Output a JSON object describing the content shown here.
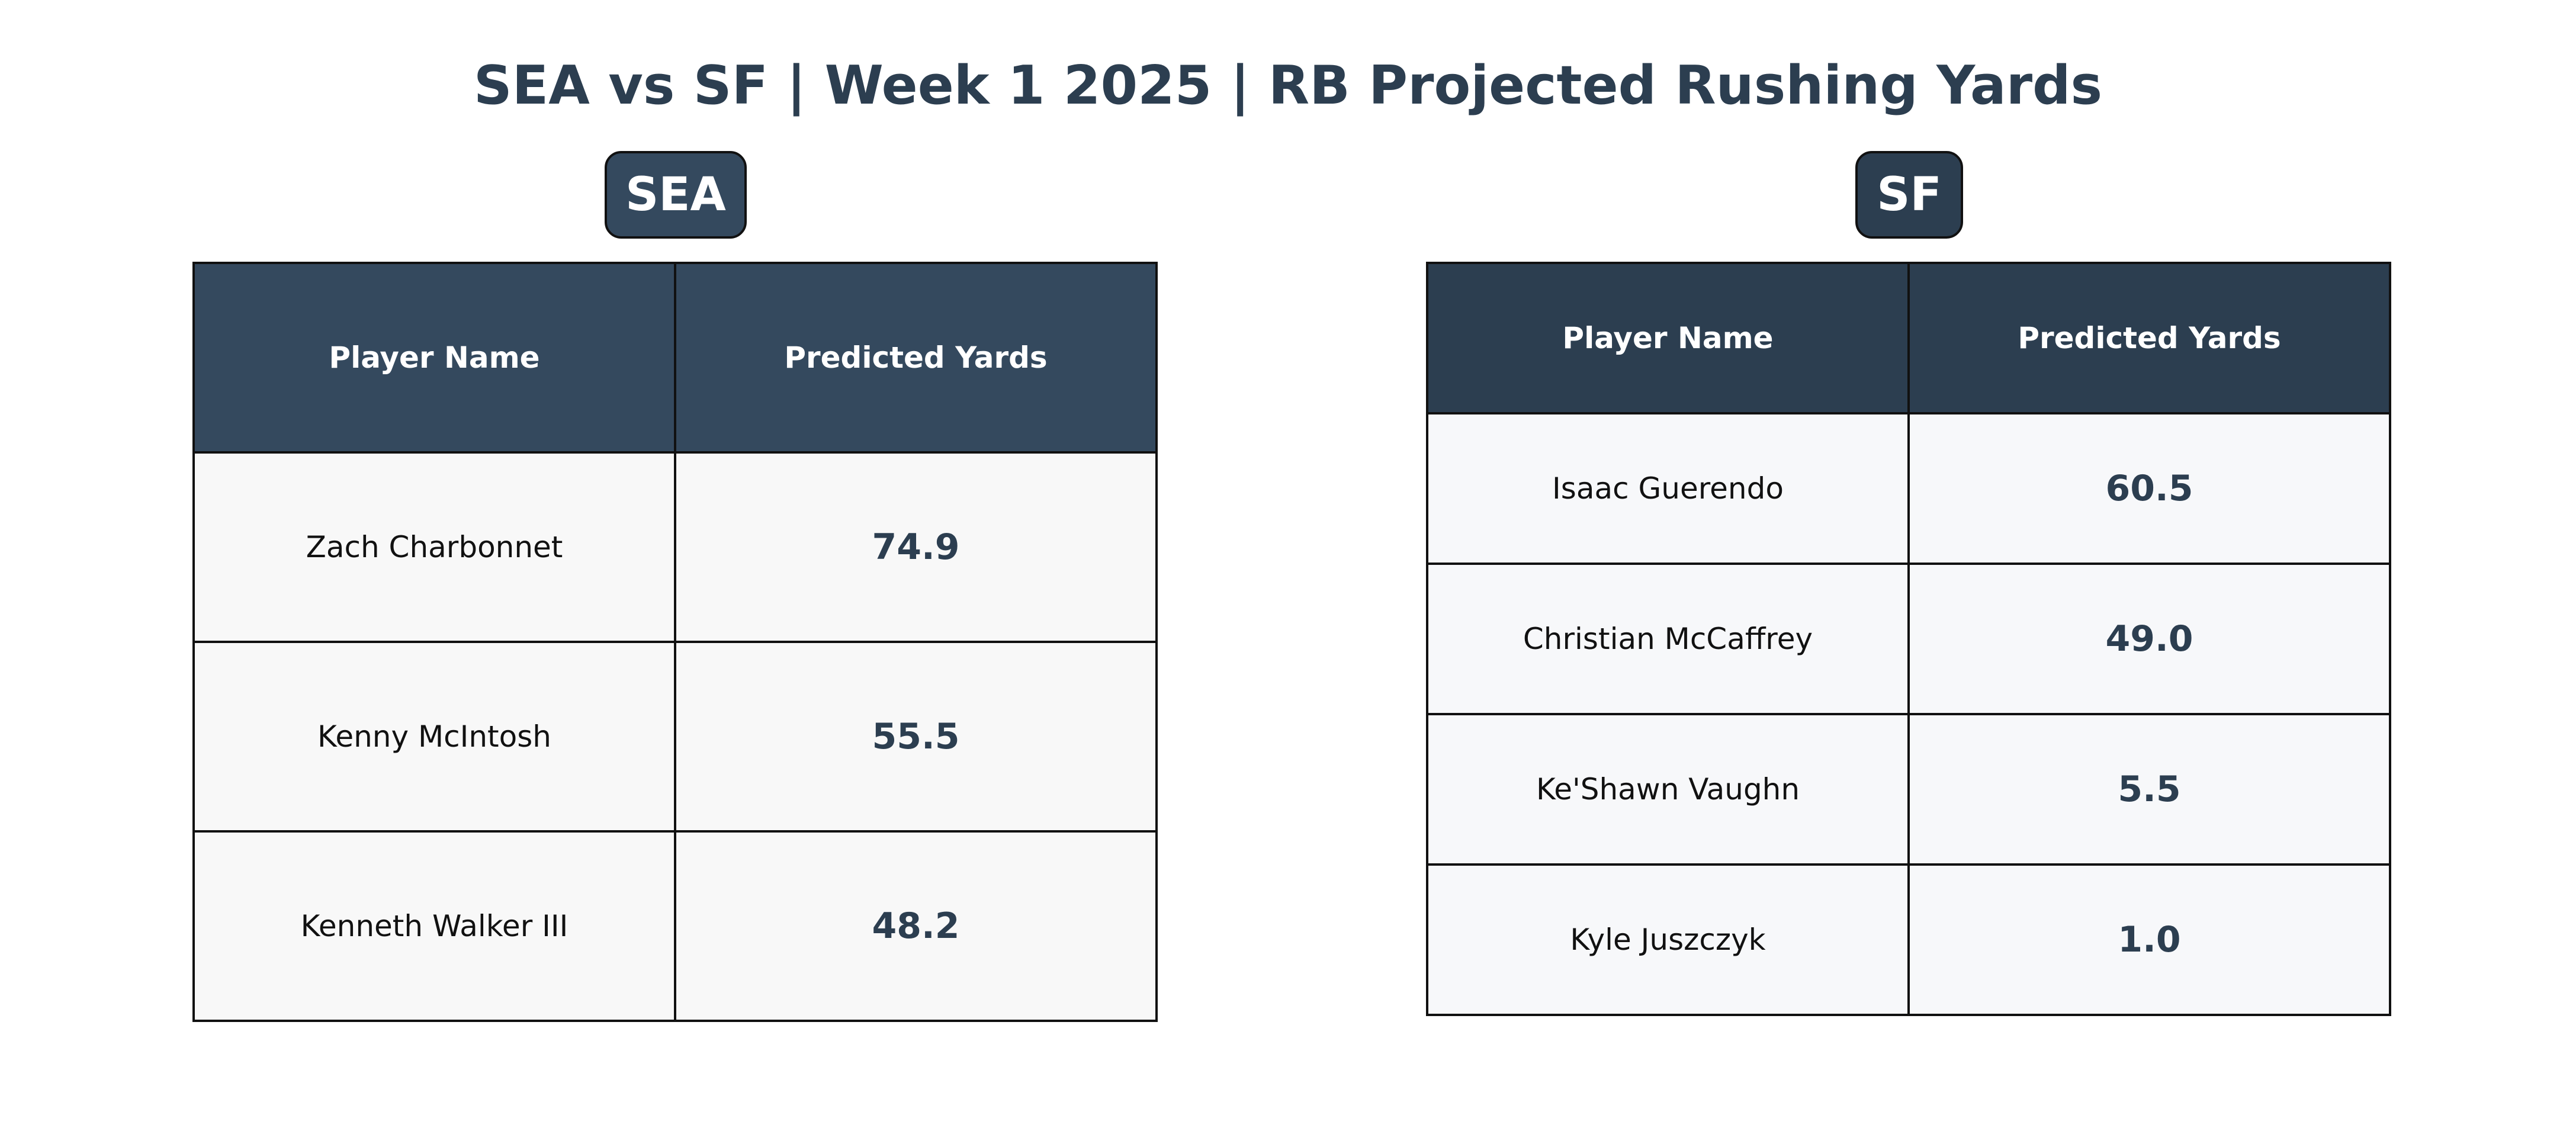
{
  "title": "SEA vs SF | Week 1 2025 | RB Projected Rushing Yards",
  "colors": {
    "title": "#2c3e50",
    "sea_header": "#34495e",
    "sf_header": "#2c3e50",
    "value_text": "#2c3e50",
    "cell_bg": "#f8f8f8"
  },
  "chart_data": [
    {
      "type": "table",
      "team": "SEA",
      "columns": [
        "Player Name",
        "Predicted Yards"
      ],
      "rows": [
        {
          "player": "Zach Charbonnet",
          "yards": "74.9"
        },
        {
          "player": "Kenny McIntosh",
          "yards": "55.5"
        },
        {
          "player": "Kenneth Walker III",
          "yards": "48.2"
        }
      ]
    },
    {
      "type": "table",
      "team": "SF",
      "columns": [
        "Player Name",
        "Predicted Yards"
      ],
      "rows": [
        {
          "player": "Isaac Guerendo",
          "yards": "60.5"
        },
        {
          "player": "Christian McCaffrey",
          "yards": "49.0"
        },
        {
          "player": "Ke'Shawn Vaughn",
          "yards": "5.5"
        },
        {
          "player": "Kyle Juszczyk",
          "yards": "1.0"
        }
      ]
    }
  ]
}
